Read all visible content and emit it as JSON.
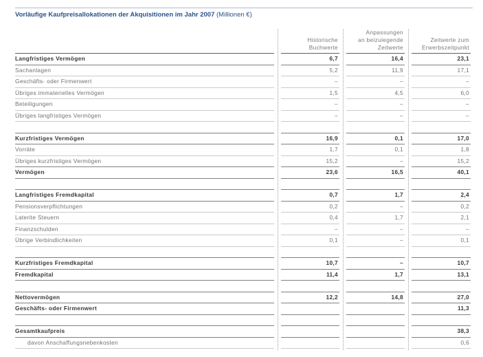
{
  "title": {
    "text": "Vorläufige Kaufpreisallokationen der Akquisitionen im Jahr 2007",
    "unit": "(Millionen €)"
  },
  "colors": {
    "accent": "#2a5288",
    "rule": "#a7bcd0"
  },
  "columns": [
    {
      "lines": [
        "Historische",
        "Buchwerte"
      ]
    },
    {
      "lines": [
        "Anpassungen",
        "an beizulegende",
        "Zeitwerte"
      ]
    },
    {
      "lines": [
        "Zeitwerte zum",
        "Erwerbszeitpunkt"
      ]
    }
  ],
  "rows": [
    {
      "label": "Langfristiges Vermögen",
      "buchwert": "6,7",
      "anpassung": "16,4",
      "zeitwert": "23,1"
    },
    {
      "label": "Sachanlagen",
      "buchwert": "5,2",
      "anpassung": "11,9",
      "zeitwert": "17,1"
    },
    {
      "label": "Geschäfts- oder Firmenwert",
      "buchwert": "–",
      "anpassung": "–",
      "zeitwert": "–"
    },
    {
      "label": "Übriges immaterielles Vermögen",
      "buchwert": "1,5",
      "anpassung": "4,5",
      "zeitwert": "6,0"
    },
    {
      "label": "Beteiligungen",
      "buchwert": "–",
      "anpassung": "–",
      "zeitwert": "–"
    },
    {
      "label": "Übriges langfristiges Vermögen",
      "buchwert": "–",
      "anpassung": "–",
      "zeitwert": "–"
    },
    {
      "label": "Kurzfristiges Vermögen",
      "buchwert": "16,9",
      "anpassung": "0,1",
      "zeitwert": "17,0"
    },
    {
      "label": "Vorräte",
      "buchwert": "1,7",
      "anpassung": "0,1",
      "zeitwert": "1,8"
    },
    {
      "label": "Übriges kurzfristiges Vermögen",
      "buchwert": "15,2",
      "anpassung": "–",
      "zeitwert": "15,2"
    },
    {
      "label": "Vermögen",
      "buchwert": "23,6",
      "anpassung": "16,5",
      "zeitwert": "40,1"
    },
    {
      "label": "Langfristiges Fremdkapital",
      "buchwert": "0,7",
      "anpassung": "1,7",
      "zeitwert": "2,4"
    },
    {
      "label": "Pensionsverpflichtungen",
      "buchwert": "0,2",
      "anpassung": "–",
      "zeitwert": "0,2"
    },
    {
      "label": "Laterite Steuern",
      "buchwert": "0,4",
      "anpassung": "1,7",
      "zeitwert": "2,1"
    },
    {
      "label": "Finanzschulden",
      "buchwert": "–",
      "anpassung": "–",
      "zeitwert": "–"
    },
    {
      "label": "Übrige Verbindlichkeiten",
      "buchwert": "0,1",
      "anpassung": "–",
      "zeitwert": "0,1"
    },
    {
      "label": "Kurzfristiges Fremdkapital",
      "buchwert": "10,7",
      "anpassung": "–",
      "zeitwert": "10,7"
    },
    {
      "label": "Fremdkapital",
      "buchwert": "11,4",
      "anpassung": "1,7",
      "zeitwert": "13,1"
    },
    {
      "label": "Nettovermögen",
      "buchwert": "12,2",
      "anpassung": "14,8",
      "zeitwert": "27,0"
    },
    {
      "label": "Geschäfts- oder Firmenwert",
      "zeitwert": "11,3"
    },
    {
      "label": "Gesamtkaufpreis",
      "zeitwert": "38,3"
    },
    {
      "label": "davon Anschaffungsnebenkosten",
      "zeitwert": "0,6"
    }
  ]
}
